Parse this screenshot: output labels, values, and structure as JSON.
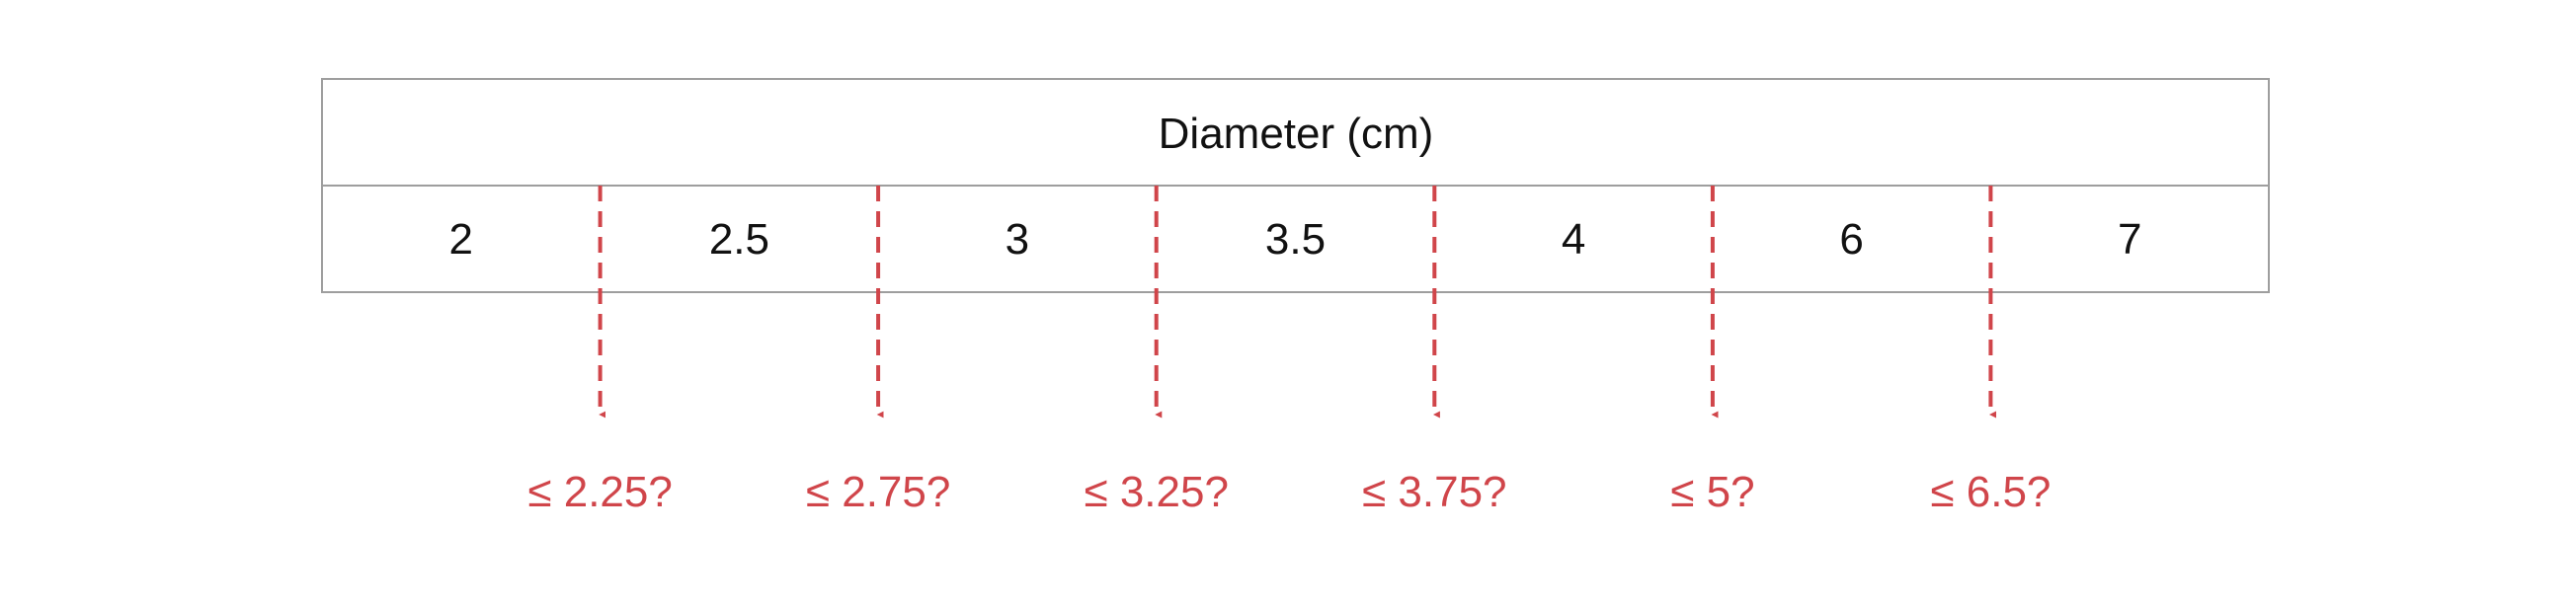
{
  "table": {
    "header": "Diameter (cm)",
    "values": [
      "2",
      "2.5",
      "3",
      "3.5",
      "4",
      "6",
      "7"
    ]
  },
  "thresholds": [
    {
      "label": "≤ 2.25?"
    },
    {
      "label": "≤ 2.75?"
    },
    {
      "label": "≤ 3.25?"
    },
    {
      "label": "≤ 3.75?"
    },
    {
      "label": "≤ 5?"
    },
    {
      "label": "≤ 6.5?"
    }
  ],
  "colors": {
    "split_line": "#d0454a",
    "threshold_text": "#d0454a",
    "border": "#9e9e9e",
    "text": "#111111"
  }
}
